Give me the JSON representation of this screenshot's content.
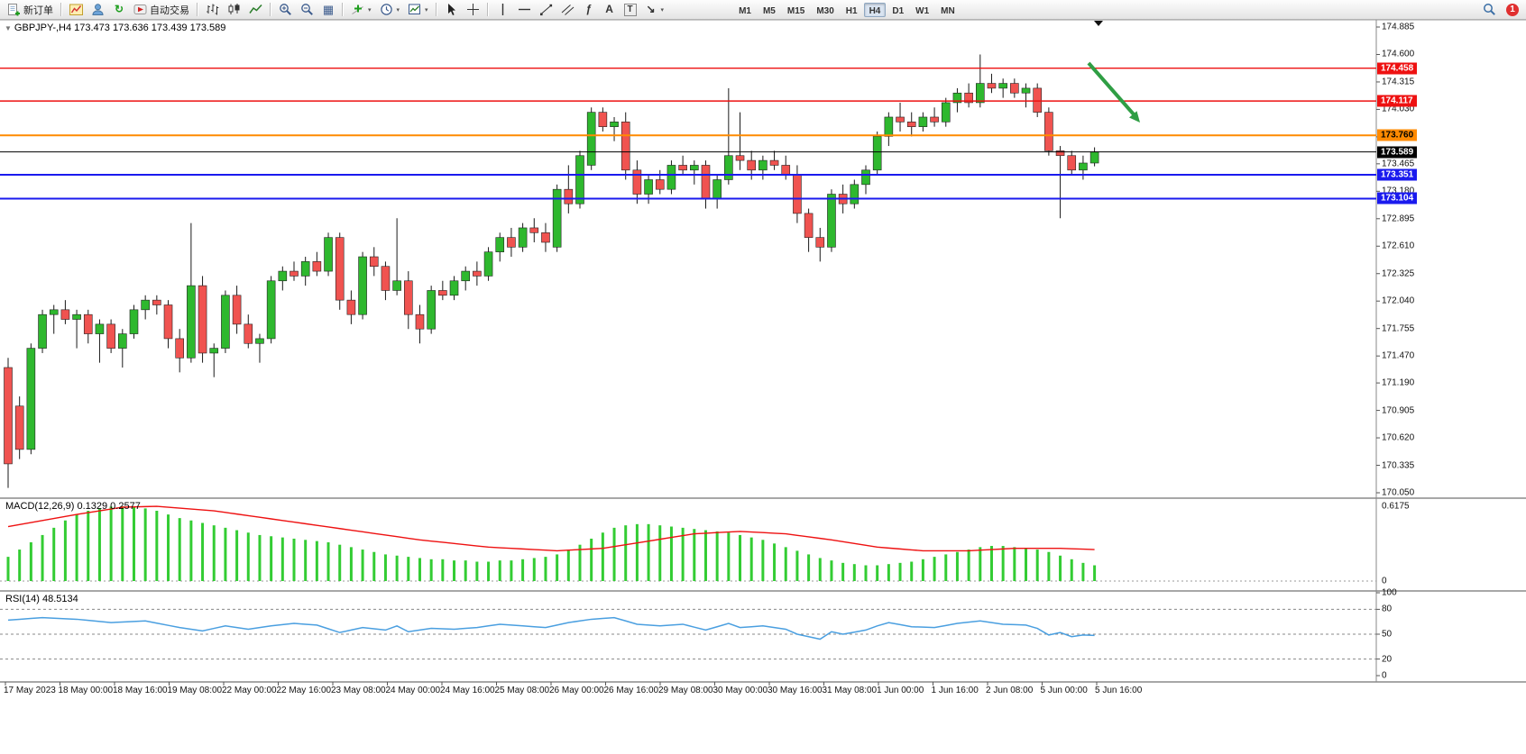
{
  "toolbar": {
    "new_order_label": "新订单",
    "autotrading_label": "自动交易",
    "timeframes": [
      "M1",
      "M5",
      "M15",
      "M30",
      "H1",
      "H4",
      "D1",
      "W1",
      "MN"
    ],
    "active_timeframe": "H4",
    "notification_count": "1"
  },
  "chart": {
    "title_line": "GBPJPY-,H4  173.473 173.636 173.439 173.589",
    "symbol": "GBPJPY-",
    "timeframe": "H4",
    "price_max": 174.885,
    "price_min": 170.05,
    "price_axis_ticks": [
      "174.885",
      "174.600",
      "174.315",
      "174.030",
      "173.745",
      "173.465",
      "173.180",
      "172.895",
      "172.610",
      "172.325",
      "172.040",
      "171.755",
      "171.470",
      "171.190",
      "170.905",
      "170.620",
      "170.335",
      "170.050"
    ],
    "hlines": [
      {
        "price": 174.458,
        "label": "174.458",
        "color": "#ee1111",
        "width": 1.4
      },
      {
        "price": 174.117,
        "label": "174.117",
        "color": "#ee1111",
        "width": 1.4
      },
      {
        "price": 173.76,
        "label": "173.760",
        "color": "#ff8a00",
        "width": 2
      },
      {
        "price": 173.589,
        "label": "173.589",
        "color": "#000000",
        "width": 1
      },
      {
        "price": 173.351,
        "label": "173.351",
        "color": "#1a1aee",
        "width": 2
      },
      {
        "price": 173.104,
        "label": "173.104",
        "color": "#1a1aee",
        "width": 2
      }
    ],
    "colors": {
      "up": "#2eb82e",
      "down": "#f05350",
      "wick": "#1a1a1a",
      "arrow": "#2f9e44"
    }
  },
  "chart_data": {
    "type": "candlestick",
    "title": "GBPJPY- H4",
    "last_ohlc": {
      "open": 173.473,
      "high": 173.636,
      "low": 173.439,
      "close": 173.589
    },
    "y_axis_range": [
      170.05,
      174.885
    ],
    "x_axis": [
      "17 May 2023",
      "18 May 00:00",
      "18 May 16:00",
      "19 May 08:00",
      "22 May 00:00",
      "22 May 16:00",
      "23 May 08:00",
      "24 May 00:00",
      "24 May 16:00",
      "25 May 08:00",
      "26 May 00:00",
      "26 May 16:00",
      "29 May 08:00",
      "30 May 00:00",
      "30 May 16:00",
      "31 May 08:00",
      "1 Jun 00:00",
      "1 Jun 16:00",
      "2 Jun 08:00",
      "5 Jun 00:00",
      "5 Jun 16:00"
    ],
    "candles": [
      [
        171.35,
        171.45,
        170.1,
        170.35
      ],
      [
        170.95,
        171.05,
        170.4,
        170.5
      ],
      [
        170.5,
        171.6,
        170.45,
        171.55
      ],
      [
        171.55,
        171.95,
        171.5,
        171.9
      ],
      [
        171.9,
        172.0,
        171.7,
        171.95
      ],
      [
        171.95,
        172.05,
        171.8,
        171.85
      ],
      [
        171.85,
        171.95,
        171.55,
        171.9
      ],
      [
        171.9,
        171.95,
        171.6,
        171.7
      ],
      [
        171.7,
        171.85,
        171.4,
        171.8
      ],
      [
        171.8,
        171.85,
        171.5,
        171.55
      ],
      [
        171.55,
        171.75,
        171.35,
        171.7
      ],
      [
        171.7,
        172.0,
        171.65,
        171.95
      ],
      [
        171.95,
        172.1,
        171.85,
        172.05
      ],
      [
        172.05,
        172.1,
        171.9,
        172.0
      ],
      [
        172.0,
        172.05,
        171.55,
        171.65
      ],
      [
        171.65,
        171.75,
        171.3,
        171.45
      ],
      [
        171.45,
        172.85,
        171.4,
        172.2
      ],
      [
        172.2,
        172.3,
        171.4,
        171.5
      ],
      [
        171.5,
        171.6,
        171.25,
        171.55
      ],
      [
        171.55,
        172.15,
        171.5,
        172.1
      ],
      [
        172.1,
        172.2,
        171.7,
        171.8
      ],
      [
        171.8,
        171.9,
        171.55,
        171.6
      ],
      [
        171.6,
        171.7,
        171.4,
        171.65
      ],
      [
        171.65,
        172.3,
        171.6,
        172.25
      ],
      [
        172.25,
        172.4,
        172.15,
        172.35
      ],
      [
        172.35,
        172.45,
        172.25,
        172.3
      ],
      [
        172.3,
        172.5,
        172.2,
        172.45
      ],
      [
        172.45,
        172.55,
        172.3,
        172.35
      ],
      [
        172.35,
        172.75,
        172.3,
        172.7
      ],
      [
        172.7,
        172.75,
        171.95,
        172.05
      ],
      [
        172.05,
        172.15,
        171.8,
        171.9
      ],
      [
        171.9,
        172.55,
        171.85,
        172.5
      ],
      [
        172.5,
        172.6,
        172.3,
        172.4
      ],
      [
        172.4,
        172.45,
        172.05,
        172.15
      ],
      [
        172.15,
        172.9,
        172.1,
        172.25
      ],
      [
        172.25,
        172.35,
        171.75,
        171.9
      ],
      [
        171.9,
        172.0,
        171.6,
        171.75
      ],
      [
        171.75,
        172.2,
        171.7,
        172.15
      ],
      [
        172.15,
        172.25,
        172.05,
        172.1
      ],
      [
        172.1,
        172.3,
        172.05,
        172.25
      ],
      [
        172.25,
        172.4,
        172.15,
        172.35
      ],
      [
        172.35,
        172.45,
        172.2,
        172.3
      ],
      [
        172.3,
        172.6,
        172.25,
        172.55
      ],
      [
        172.55,
        172.75,
        172.45,
        172.7
      ],
      [
        172.7,
        172.8,
        172.5,
        172.6
      ],
      [
        172.6,
        172.85,
        172.55,
        172.8
      ],
      [
        172.8,
        172.9,
        172.65,
        172.75
      ],
      [
        172.75,
        172.85,
        172.55,
        172.65
      ],
      [
        172.6,
        173.25,
        172.55,
        173.2
      ],
      [
        173.2,
        173.45,
        172.95,
        173.05
      ],
      [
        173.05,
        173.6,
        173.0,
        173.55
      ],
      [
        173.45,
        174.05,
        173.4,
        174.0
      ],
      [
        174.0,
        174.05,
        173.8,
        173.85
      ],
      [
        173.85,
        173.95,
        173.7,
        173.9
      ],
      [
        173.9,
        174.0,
        173.3,
        173.4
      ],
      [
        173.4,
        173.5,
        173.05,
        173.15
      ],
      [
        173.15,
        173.35,
        173.05,
        173.3
      ],
      [
        173.3,
        173.4,
        173.15,
        173.2
      ],
      [
        173.2,
        173.5,
        173.15,
        173.45
      ],
      [
        173.45,
        173.55,
        173.35,
        173.4
      ],
      [
        173.4,
        173.5,
        173.25,
        173.45
      ],
      [
        173.45,
        173.5,
        173.0,
        173.1
      ],
      [
        173.1,
        173.35,
        173.0,
        173.3
      ],
      [
        173.3,
        174.25,
        173.25,
        173.55
      ],
      [
        173.55,
        174.0,
        173.4,
        173.5
      ],
      [
        173.5,
        173.6,
        173.3,
        173.4
      ],
      [
        173.4,
        173.55,
        173.3,
        173.5
      ],
      [
        173.5,
        173.6,
        173.4,
        173.45
      ],
      [
        173.45,
        173.55,
        173.3,
        173.35
      ],
      [
        173.35,
        173.45,
        172.85,
        172.95
      ],
      [
        172.95,
        173.0,
        172.55,
        172.7
      ],
      [
        172.7,
        172.8,
        172.45,
        172.6
      ],
      [
        172.6,
        173.2,
        172.55,
        173.15
      ],
      [
        173.15,
        173.25,
        172.95,
        173.05
      ],
      [
        173.05,
        173.3,
        173.0,
        173.25
      ],
      [
        173.25,
        173.45,
        173.15,
        173.4
      ],
      [
        173.4,
        173.8,
        173.35,
        173.75
      ],
      [
        173.75,
        174.0,
        173.65,
        173.95
      ],
      [
        173.95,
        174.1,
        173.8,
        173.9
      ],
      [
        173.9,
        174.0,
        173.75,
        173.85
      ],
      [
        173.85,
        174.0,
        173.8,
        173.95
      ],
      [
        173.95,
        174.05,
        173.85,
        173.9
      ],
      [
        173.9,
        174.15,
        173.85,
        174.1
      ],
      [
        174.1,
        174.25,
        174.0,
        174.2
      ],
      [
        174.2,
        174.3,
        174.05,
        174.1
      ],
      [
        174.1,
        174.6,
        174.05,
        174.3
      ],
      [
        174.3,
        174.4,
        174.2,
        174.25
      ],
      [
        174.25,
        174.35,
        174.15,
        174.3
      ],
      [
        174.3,
        174.35,
        174.15,
        174.2
      ],
      [
        174.2,
        174.3,
        174.05,
        174.25
      ],
      [
        174.25,
        174.3,
        173.95,
        174.0
      ],
      [
        174.0,
        174.05,
        173.55,
        173.6
      ],
      [
        173.6,
        173.65,
        172.9,
        173.55
      ],
      [
        173.55,
        173.6,
        173.35,
        173.4
      ],
      [
        173.4,
        173.55,
        173.3,
        173.473
      ],
      [
        173.473,
        173.636,
        173.439,
        173.589
      ]
    ],
    "macd": {
      "label": "MACD(12,26,9) 0.1329 0.2577",
      "value": 0.1329,
      "signal_value": 0.2577,
      "ymax": 0.6175,
      "axis_labels": [
        "0.6175",
        "0"
      ],
      "color_hist": "#33cc33",
      "color_signal": "#ee1111",
      "histogram": [
        0.2,
        0.26,
        0.32,
        0.38,
        0.44,
        0.5,
        0.55,
        0.58,
        0.6,
        0.615,
        0.617,
        0.61,
        0.6,
        0.58,
        0.55,
        0.52,
        0.5,
        0.48,
        0.46,
        0.44,
        0.42,
        0.4,
        0.38,
        0.37,
        0.36,
        0.35,
        0.34,
        0.33,
        0.32,
        0.3,
        0.28,
        0.26,
        0.24,
        0.22,
        0.21,
        0.2,
        0.19,
        0.18,
        0.18,
        0.17,
        0.17,
        0.16,
        0.16,
        0.17,
        0.17,
        0.18,
        0.19,
        0.2,
        0.22,
        0.26,
        0.3,
        0.35,
        0.4,
        0.44,
        0.46,
        0.47,
        0.47,
        0.46,
        0.45,
        0.44,
        0.43,
        0.42,
        0.41,
        0.4,
        0.38,
        0.36,
        0.34,
        0.31,
        0.28,
        0.25,
        0.22,
        0.19,
        0.17,
        0.15,
        0.14,
        0.13,
        0.13,
        0.14,
        0.15,
        0.16,
        0.18,
        0.2,
        0.22,
        0.24,
        0.26,
        0.28,
        0.29,
        0.29,
        0.28,
        0.27,
        0.26,
        0.24,
        0.21,
        0.18,
        0.15,
        0.13
      ],
      "signal_anchors": [
        [
          0,
          0.45
        ],
        [
          6,
          0.55
        ],
        [
          10,
          0.61
        ],
        [
          13,
          0.617
        ],
        [
          18,
          0.58
        ],
        [
          24,
          0.5
        ],
        [
          30,
          0.42
        ],
        [
          36,
          0.34
        ],
        [
          42,
          0.28
        ],
        [
          48,
          0.25
        ],
        [
          52,
          0.27
        ],
        [
          56,
          0.33
        ],
        [
          60,
          0.39
        ],
        [
          64,
          0.41
        ],
        [
          68,
          0.39
        ],
        [
          72,
          0.34
        ],
        [
          76,
          0.28
        ],
        [
          80,
          0.25
        ],
        [
          84,
          0.25
        ],
        [
          88,
          0.27
        ],
        [
          92,
          0.27
        ],
        [
          95,
          0.26
        ]
      ]
    },
    "rsi": {
      "label": "RSI(14) 48.5134",
      "value": 48.5134,
      "color": "#4a9fe0",
      "axis_labels": [
        "100",
        "80",
        "50",
        "20",
        "0"
      ],
      "levels": [
        80,
        50,
        20
      ],
      "anchors": [
        [
          0,
          67
        ],
        [
          3,
          70
        ],
        [
          6,
          68
        ],
        [
          9,
          64
        ],
        [
          12,
          66
        ],
        [
          15,
          58
        ],
        [
          17,
          54
        ],
        [
          19,
          60
        ],
        [
          21,
          56
        ],
        [
          23,
          60
        ],
        [
          25,
          63
        ],
        [
          27,
          61
        ],
        [
          29,
          52
        ],
        [
          31,
          58
        ],
        [
          33,
          55
        ],
        [
          34,
          60
        ],
        [
          35,
          53
        ],
        [
          37,
          57
        ],
        [
          39,
          56
        ],
        [
          41,
          58
        ],
        [
          43,
          62
        ],
        [
          45,
          60
        ],
        [
          47,
          58
        ],
        [
          49,
          64
        ],
        [
          51,
          68
        ],
        [
          53,
          70
        ],
        [
          55,
          62
        ],
        [
          57,
          60
        ],
        [
          59,
          62
        ],
        [
          61,
          55
        ],
        [
          63,
          63
        ],
        [
          64,
          58
        ],
        [
          66,
          60
        ],
        [
          68,
          56
        ],
        [
          69,
          50
        ],
        [
          71,
          44
        ],
        [
          72,
          53
        ],
        [
          73,
          50
        ],
        [
          75,
          55
        ],
        [
          76,
          60
        ],
        [
          77,
          64
        ],
        [
          79,
          59
        ],
        [
          81,
          58
        ],
        [
          83,
          63
        ],
        [
          85,
          66
        ],
        [
          87,
          62
        ],
        [
          89,
          61
        ],
        [
          90,
          57
        ],
        [
          91,
          49
        ],
        [
          92,
          52
        ],
        [
          93,
          47
        ],
        [
          94,
          49
        ],
        [
          95,
          48.5
        ]
      ]
    }
  }
}
